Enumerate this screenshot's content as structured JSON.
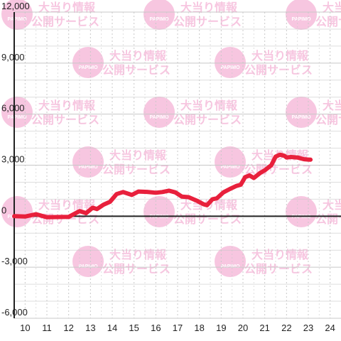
{
  "chart_data": {
    "type": "line",
    "x_ticks": [
      "10",
      "11",
      "12",
      "13",
      "14",
      "15",
      "16",
      "17",
      "18",
      "19",
      "20",
      "21",
      "22",
      "23",
      "24"
    ],
    "y_ticks": [
      "12,000",
      "9,000",
      "6,000",
      "3,000",
      "0",
      "-3,000",
      "-6,000"
    ],
    "y_tick_values": [
      12000,
      9000,
      6000,
      3000,
      0,
      -3000,
      -6000
    ],
    "xlim": [
      9.5,
      24.5
    ],
    "ylim": [
      -6000,
      12000
    ],
    "grid": true,
    "series": [
      {
        "color": "#e8203c",
        "points": [
          [
            9.5,
            0
          ],
          [
            10.0,
            -20
          ],
          [
            10.5,
            120
          ],
          [
            11.0,
            -60
          ],
          [
            11.5,
            -50
          ],
          [
            12.0,
            -40
          ],
          [
            12.5,
            300
          ],
          [
            12.8,
            180
          ],
          [
            13.1,
            500
          ],
          [
            13.3,
            420
          ],
          [
            13.6,
            680
          ],
          [
            13.9,
            850
          ],
          [
            14.2,
            1300
          ],
          [
            14.5,
            1420
          ],
          [
            14.9,
            1250
          ],
          [
            15.2,
            1450
          ],
          [
            15.6,
            1430
          ],
          [
            16.0,
            1380
          ],
          [
            16.3,
            1420
          ],
          [
            16.6,
            1500
          ],
          [
            16.9,
            1400
          ],
          [
            17.2,
            1150
          ],
          [
            17.5,
            1120
          ],
          [
            17.9,
            900
          ],
          [
            18.2,
            700
          ],
          [
            18.35,
            650
          ],
          [
            18.6,
            1000
          ],
          [
            18.8,
            1050
          ],
          [
            19.1,
            1400
          ],
          [
            19.4,
            1600
          ],
          [
            19.7,
            1780
          ],
          [
            19.9,
            1850
          ],
          [
            20.1,
            2300
          ],
          [
            20.3,
            2400
          ],
          [
            20.5,
            2250
          ],
          [
            20.8,
            2550
          ],
          [
            21.0,
            2700
          ],
          [
            21.3,
            3000
          ],
          [
            21.5,
            3500
          ],
          [
            21.7,
            3620
          ],
          [
            21.9,
            3550
          ],
          [
            22.0,
            3450
          ],
          [
            22.2,
            3480
          ],
          [
            22.5,
            3450
          ],
          [
            22.8,
            3350
          ],
          [
            23.0,
            3330
          ],
          [
            23.1,
            3320
          ]
        ]
      }
    ]
  },
  "watermark": {
    "logo_text": "PAPIMO",
    "line1": "大当り情報",
    "line2": "公開サービス",
    "color": "#f7c6e0"
  }
}
